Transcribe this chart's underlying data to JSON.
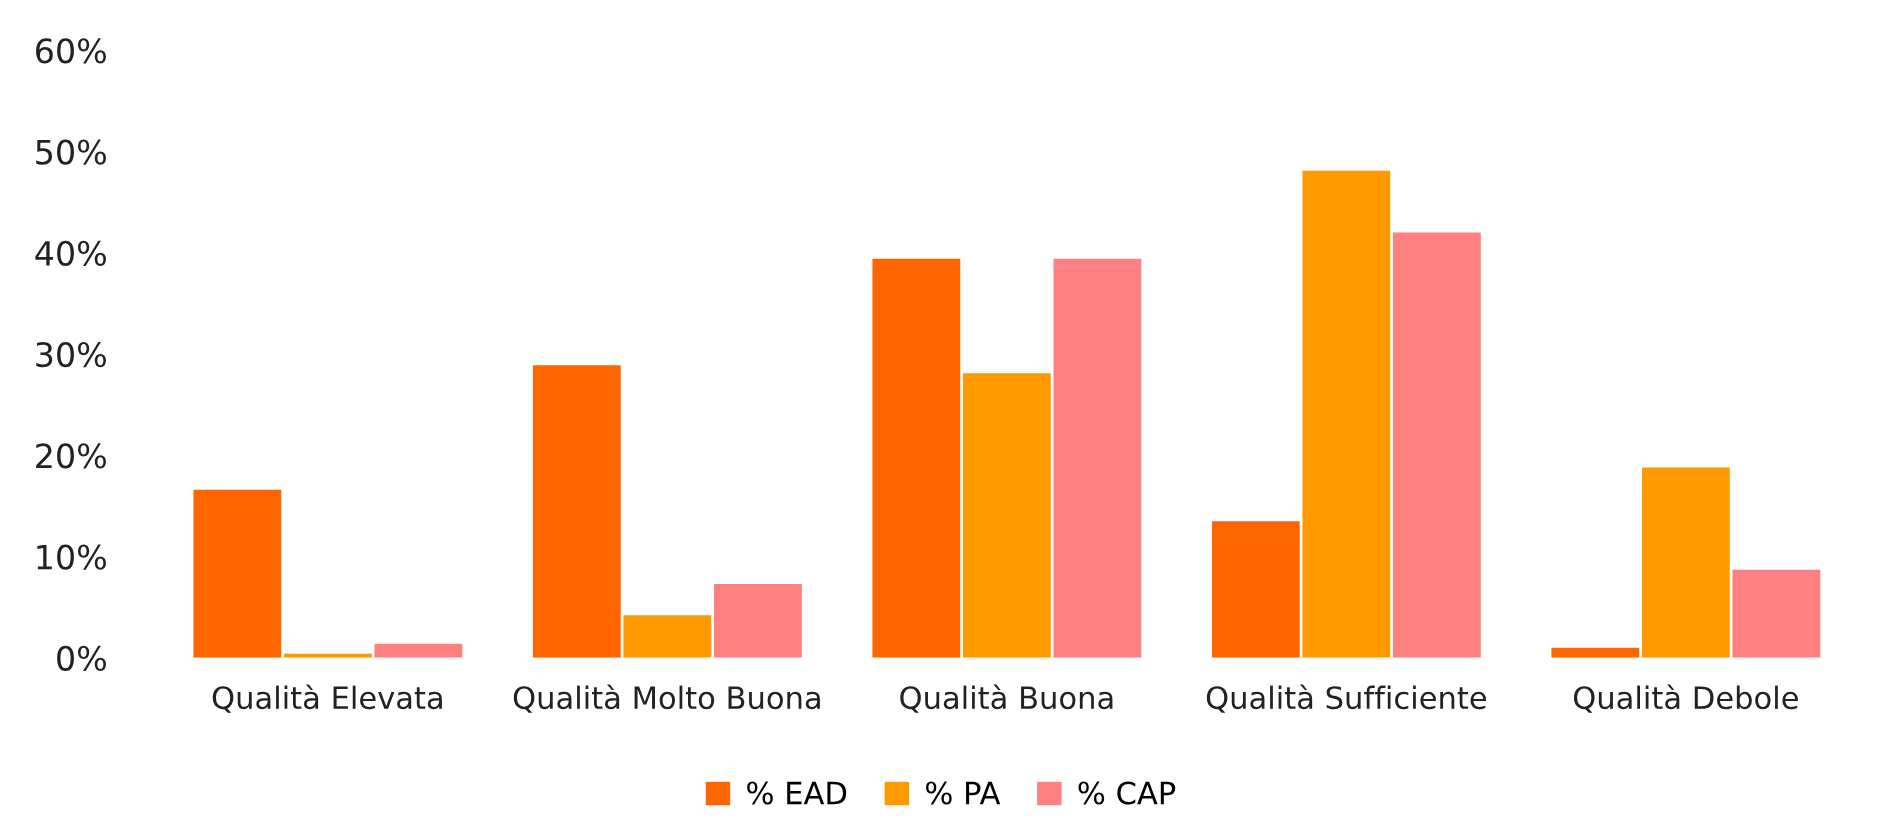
{
  "chart_data": {
    "type": "bar",
    "categories": [
      "Qualità Elevata",
      "Qualità Molto Buona",
      "Qualità Buona",
      "Qualità Sufficiente",
      "Qualità Debole"
    ],
    "series": [
      {
        "name": "% EAD",
        "color": "#ff6600",
        "values": [
          16.6,
          28.9,
          39.4,
          13.5,
          1.0
        ]
      },
      {
        "name": "% PA",
        "color": "#ff9900",
        "values": [
          0.4,
          4.2,
          28.1,
          48.1,
          18.8
        ]
      },
      {
        "name": "% CAP",
        "color": "#ff8080",
        "values": [
          1.4,
          7.3,
          39.4,
          42.0,
          8.7
        ]
      }
    ],
    "ylim": [
      0,
      60
    ],
    "yticks": [
      {
        "value": 0,
        "label": "0%"
      },
      {
        "value": 10,
        "label": "10%"
      },
      {
        "value": 20,
        "label": "20%"
      },
      {
        "value": 30,
        "label": "30%"
      },
      {
        "value": 40,
        "label": "40%"
      },
      {
        "value": 50,
        "label": "50%"
      },
      {
        "value": 60,
        "label": "60%"
      }
    ],
    "grid": false,
    "legend": "bottom"
  }
}
